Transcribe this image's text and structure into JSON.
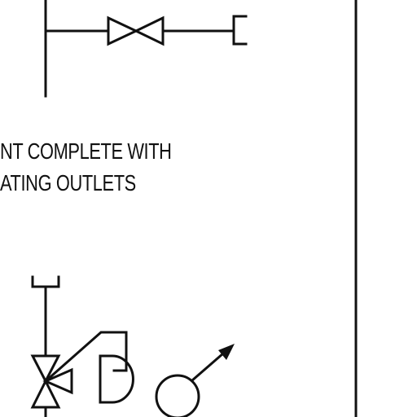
{
  "note": {
    "line1": "NT COMPLETE WITH",
    "line2": "ATING OUTLETS"
  },
  "colors": {
    "ink": "#111111",
    "paper": "#ffffff"
  },
  "symbols": [
    "vertical-pipe",
    "gate-valve-icon",
    "pipe-cap-icon",
    "three-way-valve-icon",
    "actuator-icon",
    "instrument-circle-icon",
    "direction-arrow-icon",
    "border-line"
  ]
}
